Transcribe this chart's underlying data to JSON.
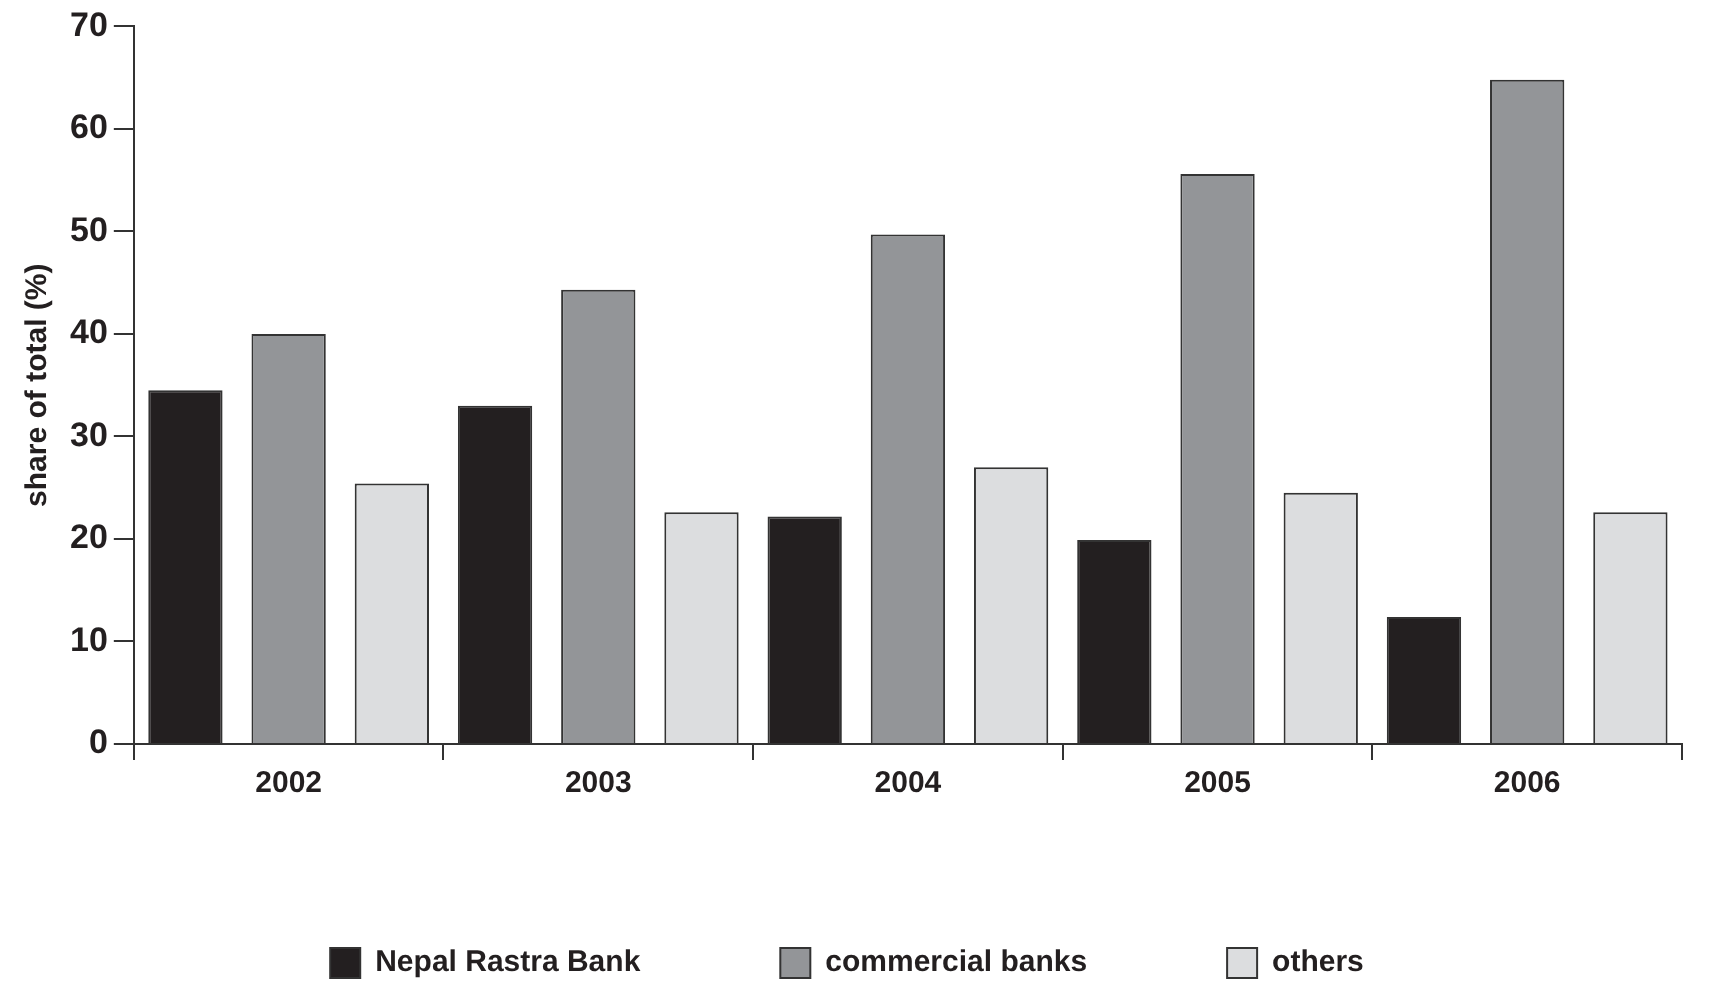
{
  "chart_data": {
    "type": "bar",
    "ylabel": "share of total (%)",
    "categories": [
      "2002",
      "2003",
      "2004",
      "2005",
      "2006"
    ],
    "series": [
      {
        "name": "Nepal Rastra Bank",
        "color": "#231f20",
        "values": [
          34.5,
          33.0,
          22.2,
          19.9,
          12.4
        ]
      },
      {
        "name": "commercial banks",
        "color": "#939598",
        "values": [
          40,
          44.3,
          49.7,
          55.6,
          64.8
        ]
      },
      {
        "name": "others",
        "color": "#dcdddf",
        "values": [
          25.4,
          22.6,
          27.0,
          24.5,
          22.6
        ]
      }
    ],
    "ylim": [
      0,
      70
    ],
    "yticks": [
      0,
      10,
      20,
      30,
      40,
      50,
      60,
      70
    ],
    "grid": false,
    "legend": "bottom"
  }
}
